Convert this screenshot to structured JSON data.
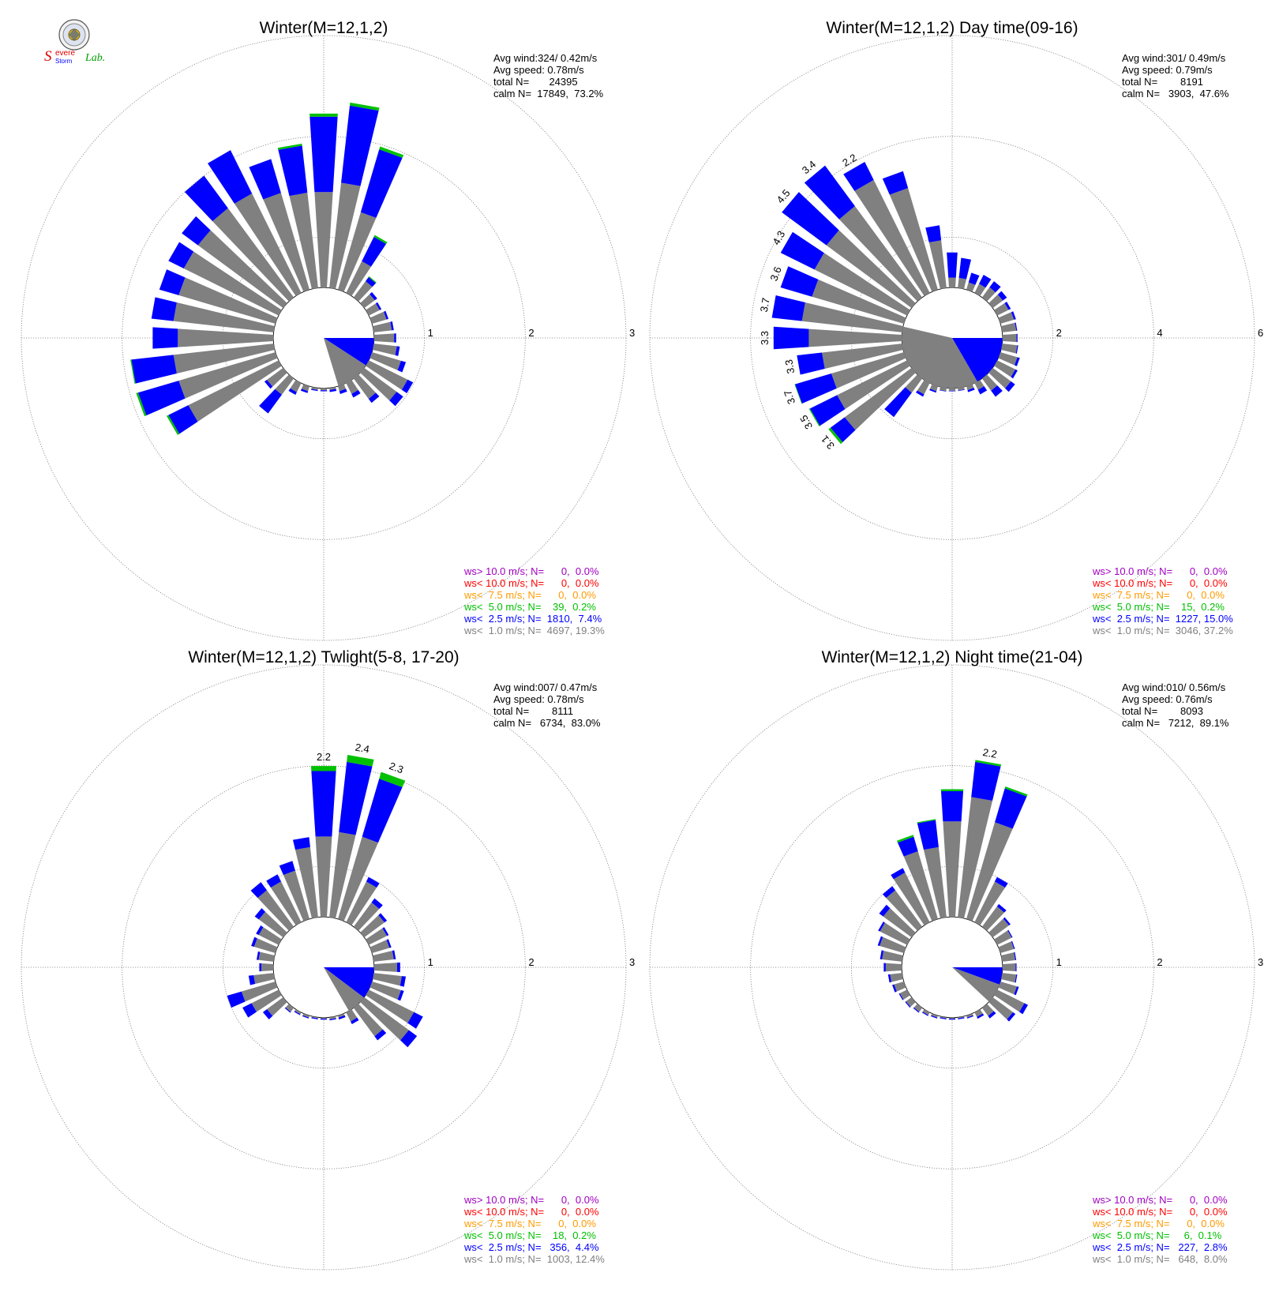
{
  "logo": {
    "letters": [
      "S",
      "evere",
      "Storm",
      "Lab."
    ],
    "colors": {
      "s1": "#e00000",
      "s2": "#0000ff",
      "lab": "#00a000"
    }
  },
  "colors": {
    "calm": "#808080",
    "ws_lt1": "#808080",
    "ws_lt2_5": "#0000ff",
    "ws_lt5": "#00c000",
    "ws_lt7_5": "#ff9a00",
    "ws_lt10": "#ff0000",
    "ws_gt10": "#a000c0",
    "grid": "#808080"
  },
  "chart_data": [
    {
      "type": "windrose",
      "title": "Winter(M=12,1,2)",
      "stats": [
        "Avg wind:324/ 0.42m/s",
        "Avg speed: 0.78m/s",
        "total N=       24395",
        "calm N=  17849,  73.2%"
      ],
      "rings": [
        "1",
        "2",
        "3"
      ],
      "rmax": 3,
      "calm_radius": 0.5,
      "calm_pie": [
        {
          "from_deg": 90,
          "to_deg": 123,
          "color": "#0000ff"
        },
        {
          "from_deg": 123,
          "to_deg": 163,
          "color": "#808080"
        }
      ],
      "bar_labels": [],
      "sectors": [
        [
          0,
          1.45,
          2.2,
          2.23
        ],
        [
          10,
          1.55,
          2.32,
          2.35
        ],
        [
          20,
          1.3,
          1.95,
          1.98
        ],
        [
          30,
          0.85,
          1.12,
          1.14
        ],
        [
          40,
          0.7,
          0.75,
          0.76
        ],
        [
          50,
          0.63,
          0.66,
          0.66
        ],
        [
          60,
          0.62,
          0.64,
          0.64
        ],
        [
          70,
          0.65,
          0.67,
          0.67
        ],
        [
          80,
          0.68,
          0.7,
          0.7
        ],
        [
          90,
          0.7,
          0.72,
          0.72
        ],
        [
          100,
          0.73,
          0.76,
          0.76
        ],
        [
          110,
          0.8,
          0.85,
          0.85
        ],
        [
          120,
          0.93,
          0.99,
          0.99
        ],
        [
          130,
          0.9,
          0.98,
          0.98
        ],
        [
          140,
          0.75,
          0.8,
          0.8
        ],
        [
          150,
          0.62,
          0.66,
          0.66
        ],
        [
          160,
          0.55,
          0.58,
          0.58
        ],
        [
          170,
          0.52,
          0.54,
          0.54
        ],
        [
          180,
          0.52,
          0.53,
          0.53
        ],
        [
          190,
          0.52,
          0.53,
          0.53
        ],
        [
          200,
          0.55,
          0.57,
          0.57
        ],
        [
          210,
          0.6,
          0.63,
          0.63
        ],
        [
          220,
          0.7,
          0.93,
          0.93
        ],
        [
          230,
          0.7,
          0.73,
          0.73
        ],
        [
          240,
          1.5,
          1.72,
          1.74
        ],
        [
          250,
          1.5,
          1.92,
          1.94
        ],
        [
          260,
          1.5,
          1.92,
          1.93
        ],
        [
          270,
          1.45,
          1.7,
          1.7
        ],
        [
          280,
          1.5,
          1.72,
          1.72
        ],
        [
          290,
          1.5,
          1.7,
          1.7
        ],
        [
          300,
          1.55,
          1.72,
          1.72
        ],
        [
          310,
          1.55,
          1.75,
          1.75
        ],
        [
          320,
          1.6,
          2.0,
          2.0
        ],
        [
          330,
          1.6,
          2.08,
          2.08
        ],
        [
          340,
          1.5,
          1.85,
          1.85
        ],
        [
          350,
          1.45,
          1.92,
          1.94
        ]
      ],
      "legend": [
        {
          "text": "ws> 10.0 m/s; N=      0,  0.0%",
          "color": "#a000c0"
        },
        {
          "text": "ws< 10.0 m/s; N=      0,  0.0%",
          "color": "#ff0000"
        },
        {
          "text": "ws<  7.5 m/s; N=      0,  0.0%",
          "color": "#ff9a00"
        },
        {
          "text": "ws<  5.0 m/s; N=    39,  0.2%",
          "color": "#00c000"
        },
        {
          "text": "ws<  2.5 m/s; N=  1810,  7.4%",
          "color": "#0000ff"
        },
        {
          "text": "ws<  1.0 m/s; N=  4697, 19.3%",
          "color": "#808080"
        }
      ]
    },
    {
      "type": "windrose",
      "title": "Winter(M=12,1,2) Day time(09-16)",
      "stats": [
        "Avg wind:301/ 0.49m/s",
        "Avg speed: 0.79m/s",
        "total N=        8191",
        "calm N=   3903,  47.6%"
      ],
      "rings": [
        "2",
        "4",
        "6"
      ],
      "rmax": 6,
      "calm_radius": 1.0,
      "calm_pie": [
        {
          "from_deg": 90,
          "to_deg": 150,
          "color": "#0000ff"
        },
        {
          "from_deg": 150,
          "to_deg": 283,
          "color": "#808080"
        }
      ],
      "bar_labels": [
        {
          "deg": 10,
          "value": "0",
          "text": ""
        },
        {
          "deg": 330,
          "text": "2.2"
        },
        {
          "deg": 320,
          "text": "3.4"
        },
        {
          "deg": 310,
          "text": "4.5"
        },
        {
          "deg": 300,
          "text": "4.3"
        },
        {
          "deg": 290,
          "text": "3.6"
        },
        {
          "deg": 280,
          "text": "3.7"
        },
        {
          "deg": 270,
          "text": "3.3"
        },
        {
          "deg": 260,
          "text": "3.3"
        },
        {
          "deg": 250,
          "text": "3.7"
        },
        {
          "deg": 240,
          "text": "3.5"
        },
        {
          "deg": 230,
          "text": "3.1"
        }
      ],
      "sectors": [
        [
          0,
          1.2,
          1.7,
          1.7
        ],
        [
          10,
          1.2,
          1.6,
          1.6
        ],
        [
          20,
          1.15,
          1.35,
          1.35
        ],
        [
          30,
          1.2,
          1.4,
          1.4
        ],
        [
          40,
          1.25,
          1.4,
          1.4
        ],
        [
          50,
          1.25,
          1.35,
          1.35
        ],
        [
          60,
          1.25,
          1.3,
          1.3
        ],
        [
          70,
          1.28,
          1.32,
          1.32
        ],
        [
          80,
          1.28,
          1.3,
          1.3
        ],
        [
          90,
          1.28,
          1.3,
          1.3
        ],
        [
          100,
          1.3,
          1.32,
          1.32
        ],
        [
          110,
          1.35,
          1.4,
          1.4
        ],
        [
          120,
          1.4,
          1.45,
          1.45
        ],
        [
          130,
          1.45,
          1.55,
          1.55
        ],
        [
          140,
          1.3,
          1.45,
          1.45
        ],
        [
          150,
          1.15,
          1.25,
          1.25
        ],
        [
          160,
          1.08,
          1.12,
          1.12
        ],
        [
          170,
          1.05,
          1.06,
          1.06
        ],
        [
          180,
          1.05,
          1.06,
          1.06
        ],
        [
          190,
          1.06,
          1.07,
          1.07
        ],
        [
          200,
          1.1,
          1.13,
          1.13
        ],
        [
          210,
          1.25,
          1.3,
          1.3
        ],
        [
          220,
          1.35,
          1.95,
          1.95
        ],
        [
          230,
          2.65,
          3.0,
          3.05
        ],
        [
          240,
          2.55,
          3.15,
          3.17
        ],
        [
          250,
          2.5,
          3.25,
          3.26
        ],
        [
          260,
          2.6,
          3.1,
          3.1
        ],
        [
          270,
          2.85,
          3.55,
          3.55
        ],
        [
          280,
          3.0,
          3.6,
          3.6
        ],
        [
          290,
          2.9,
          3.55,
          3.55
        ],
        [
          300,
          3.05,
          3.8,
          3.8
        ],
        [
          310,
          3.1,
          4.2,
          4.2
        ],
        [
          320,
          3.25,
          4.25,
          4.25
        ],
        [
          330,
          3.5,
          3.9,
          3.9
        ],
        [
          340,
          3.1,
          3.45,
          3.45
        ],
        [
          350,
          1.95,
          2.25,
          2.25
        ]
      ],
      "legend": [
        {
          "text": "ws> 10.0 m/s; N=      0,  0.0%",
          "color": "#a000c0"
        },
        {
          "text": "ws< 10.0 m/s; N=      0,  0.0%",
          "color": "#ff0000"
        },
        {
          "text": "ws<  7.5 m/s; N=      0,  0.0%",
          "color": "#ff9a00"
        },
        {
          "text": "ws<  5.0 m/s; N=    15,  0.2%",
          "color": "#00c000"
        },
        {
          "text": "ws<  2.5 m/s; N=  1227, 15.0%",
          "color": "#0000ff"
        },
        {
          "text": "ws<  1.0 m/s; N=  3046, 37.2%",
          "color": "#808080"
        }
      ]
    },
    {
      "type": "windrose",
      "title": "Winter(M=12,1,2) Twlight(5-8, 17-20)",
      "stats": [
        "Avg wind:007/ 0.47m/s",
        "Avg speed: 0.78m/s",
        "total N=        8111",
        "calm N=   6734,  83.0%"
      ],
      "rings": [
        "1",
        "2",
        "3"
      ],
      "rmax": 3,
      "calm_radius": 0.5,
      "calm_pie": [
        {
          "from_deg": 90,
          "to_deg": 127,
          "color": "#0000ff"
        },
        {
          "from_deg": 127,
          "to_deg": 150,
          "color": "#808080"
        }
      ],
      "bar_labels": [
        {
          "deg": 0,
          "text": "2.2"
        },
        {
          "deg": 10,
          "text": "2.4"
        },
        {
          "deg": 20,
          "text": "2.3"
        }
      ],
      "sectors": [
        [
          0,
          1.3,
          1.95,
          2.0
        ],
        [
          10,
          1.35,
          2.05,
          2.12
        ],
        [
          20,
          1.35,
          1.95,
          2.02
        ],
        [
          30,
          0.95,
          1.0,
          1.0
        ],
        [
          40,
          0.8,
          0.85,
          0.85
        ],
        [
          50,
          0.75,
          0.78,
          0.78
        ],
        [
          60,
          0.7,
          0.72,
          0.72
        ],
        [
          70,
          0.68,
          0.7,
          0.7
        ],
        [
          80,
          0.7,
          0.72,
          0.72
        ],
        [
          90,
          0.73,
          0.76,
          0.76
        ],
        [
          100,
          0.78,
          0.82,
          0.82
        ],
        [
          110,
          0.8,
          0.83,
          0.83
        ],
        [
          120,
          1.0,
          1.1,
          1.1
        ],
        [
          130,
          1.05,
          1.15,
          1.15
        ],
        [
          140,
          0.85,
          0.9,
          0.9
        ],
        [
          150,
          0.6,
          0.63,
          0.63
        ],
        [
          160,
          0.52,
          0.54,
          0.54
        ],
        [
          170,
          0.52,
          0.53,
          0.53
        ],
        [
          180,
          0.51,
          0.52,
          0.52
        ],
        [
          190,
          0.51,
          0.52,
          0.52
        ],
        [
          200,
          0.52,
          0.53,
          0.53
        ],
        [
          210,
          0.52,
          0.53,
          0.53
        ],
        [
          220,
          0.55,
          0.56,
          0.56
        ],
        [
          230,
          0.7,
          0.75,
          0.75
        ],
        [
          240,
          0.8,
          0.9,
          0.9
        ],
        [
          250,
          0.85,
          1.0,
          1.0
        ],
        [
          260,
          0.7,
          0.75,
          0.75
        ],
        [
          270,
          0.62,
          0.64,
          0.64
        ],
        [
          280,
          0.65,
          0.67,
          0.67
        ],
        [
          290,
          0.72,
          0.75,
          0.75
        ],
        [
          300,
          0.72,
          0.75,
          0.75
        ],
        [
          310,
          0.8,
          0.85,
          0.85
        ],
        [
          320,
          0.95,
          1.05,
          1.05
        ],
        [
          330,
          0.95,
          1.03,
          1.03
        ],
        [
          340,
          1.0,
          1.1,
          1.1
        ],
        [
          350,
          1.2,
          1.3,
          1.3
        ]
      ],
      "legend": [
        {
          "text": "ws> 10.0 m/s; N=      0,  0.0%",
          "color": "#a000c0"
        },
        {
          "text": "ws< 10.0 m/s; N=      0,  0.0%",
          "color": "#ff0000"
        },
        {
          "text": "ws<  7.5 m/s; N=      0,  0.0%",
          "color": "#ff9a00"
        },
        {
          "text": "ws<  5.0 m/s; N=    18,  0.2%",
          "color": "#00c000"
        },
        {
          "text": "ws<  2.5 m/s; N=   356,  4.4%",
          "color": "#0000ff"
        },
        {
          "text": "ws<  1.0 m/s; N=  1003, 12.4%",
          "color": "#808080"
        }
      ]
    },
    {
      "type": "windrose",
      "title": "Winter(M=12,1,2) Night time(21-04)",
      "stats": [
        "Avg wind:010/ 0.56m/s",
        "Avg speed: 0.76m/s",
        "total N=        8093",
        "calm N=   7212,  89.1%"
      ],
      "rings": [
        "1",
        "2",
        "3"
      ],
      "rmax": 3,
      "calm_radius": 0.5,
      "calm_pie": [
        {
          "from_deg": 90,
          "to_deg": 110,
          "color": "#0000ff"
        },
        {
          "from_deg": 110,
          "to_deg": 133,
          "color": "#808080"
        }
      ],
      "bar_labels": [
        {
          "deg": 10,
          "text": "2.2"
        }
      ],
      "sectors": [
        [
          0,
          1.45,
          1.75,
          1.77
        ],
        [
          10,
          1.7,
          2.05,
          2.07
        ],
        [
          20,
          1.5,
          1.85,
          1.87
        ],
        [
          30,
          0.95,
          1.0,
          1.0
        ],
        [
          40,
          0.75,
          0.78,
          0.78
        ],
        [
          50,
          0.7,
          0.72,
          0.72
        ],
        [
          60,
          0.66,
          0.67,
          0.67
        ],
        [
          70,
          0.64,
          0.65,
          0.65
        ],
        [
          80,
          0.63,
          0.64,
          0.64
        ],
        [
          90,
          0.63,
          0.64,
          0.64
        ],
        [
          100,
          0.64,
          0.65,
          0.65
        ],
        [
          110,
          0.67,
          0.69,
          0.69
        ],
        [
          120,
          0.8,
          0.84,
          0.84
        ],
        [
          130,
          0.75,
          0.78,
          0.78
        ],
        [
          140,
          0.6,
          0.63,
          0.63
        ],
        [
          150,
          0.55,
          0.57,
          0.57
        ],
        [
          160,
          0.52,
          0.53,
          0.53
        ],
        [
          170,
          0.51,
          0.52,
          0.52
        ],
        [
          180,
          0.51,
          0.52,
          0.52
        ],
        [
          190,
          0.51,
          0.52,
          0.52
        ],
        [
          200,
          0.52,
          0.53,
          0.53
        ],
        [
          210,
          0.53,
          0.54,
          0.54
        ],
        [
          220,
          0.55,
          0.56,
          0.56
        ],
        [
          230,
          0.57,
          0.58,
          0.58
        ],
        [
          240,
          0.58,
          0.59,
          0.59
        ],
        [
          250,
          0.6,
          0.62,
          0.62
        ],
        [
          260,
          0.62,
          0.64,
          0.64
        ],
        [
          270,
          0.66,
          0.68,
          0.68
        ],
        [
          280,
          0.7,
          0.72,
          0.72
        ],
        [
          290,
          0.75,
          0.77,
          0.77
        ],
        [
          300,
          0.8,
          0.82,
          0.82
        ],
        [
          310,
          0.85,
          0.9,
          0.9
        ],
        [
          320,
          0.95,
          1.0,
          1.0
        ],
        [
          330,
          1.05,
          1.1,
          1.1
        ],
        [
          340,
          1.2,
          1.35,
          1.37
        ],
        [
          350,
          1.2,
          1.47,
          1.48
        ]
      ],
      "legend": [
        {
          "text": "ws> 10.0 m/s; N=      0,  0.0%",
          "color": "#a000c0"
        },
        {
          "text": "ws< 10.0 m/s; N=      0,  0.0%",
          "color": "#ff0000"
        },
        {
          "text": "ws<  7.5 m/s; N=      0,  0.0%",
          "color": "#ff9a00"
        },
        {
          "text": "ws<  5.0 m/s; N=     6,  0.1%",
          "color": "#00c000"
        },
        {
          "text": "ws<  2.5 m/s; N=   227,  2.8%",
          "color": "#0000ff"
        },
        {
          "text": "ws<  1.0 m/s; N=   648,  8.0%",
          "color": "#808080"
        }
      ]
    }
  ]
}
